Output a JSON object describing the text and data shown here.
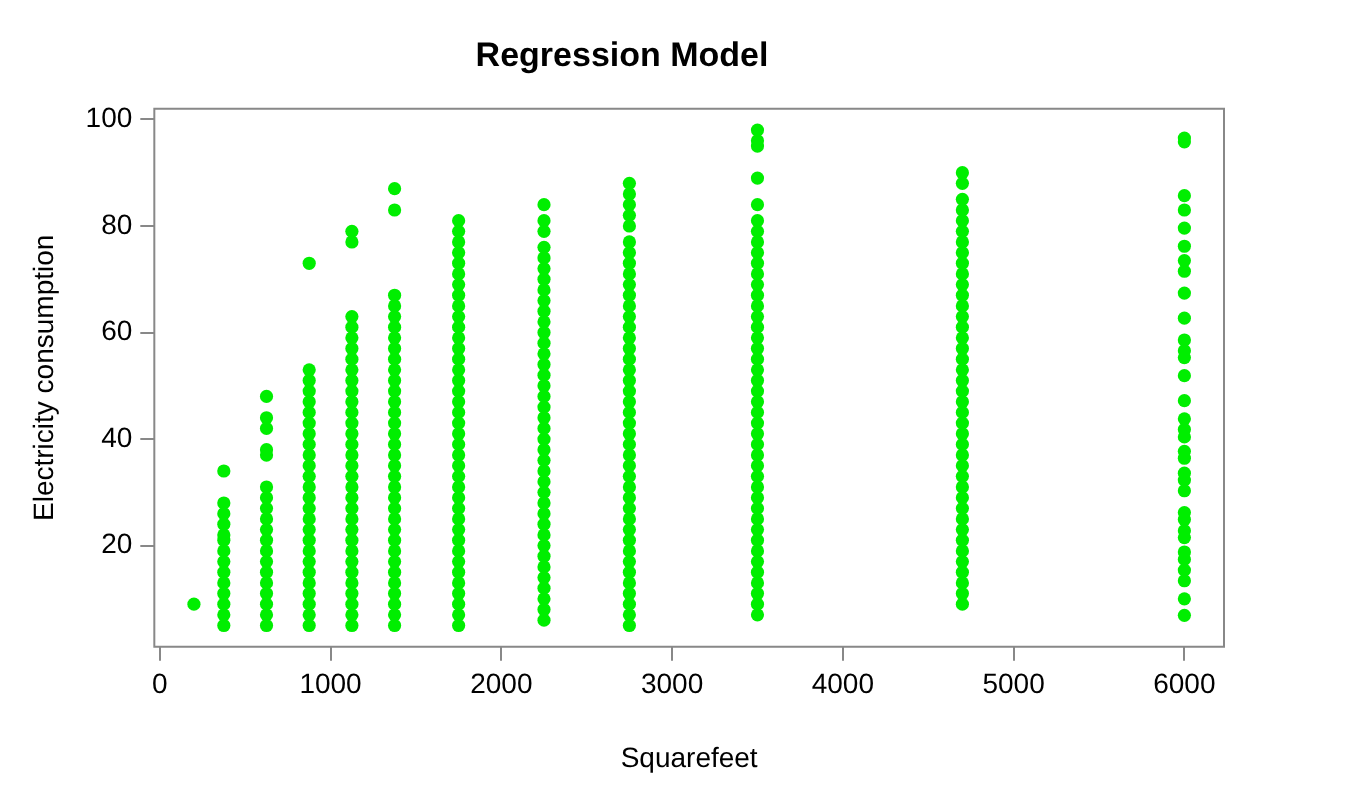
{
  "chart_data": {
    "type": "scatter",
    "title": "Regression Model",
    "xlabel": "Squarefeet",
    "ylabel": "Electricity consumption",
    "xlim": [
      -32,
      6232
    ],
    "ylim": [
      1,
      102
    ],
    "xticks": [
      0,
      1000,
      2000,
      3000,
      4000,
      5000,
      6000
    ],
    "yticks": [
      20,
      40,
      60,
      80,
      100
    ],
    "marker": "circle",
    "series": [
      {
        "color": "#00ee00",
        "x": [
          200,
          375,
          375,
          375,
          375,
          375,
          375,
          375,
          375,
          375,
          375,
          375,
          375,
          375,
          375,
          625,
          625,
          625,
          625,
          625,
          625,
          625,
          625,
          625,
          625,
          625,
          625,
          625,
          625,
          625,
          625,
          625,
          625,
          625,
          875,
          875,
          875,
          875,
          875,
          875,
          875,
          875,
          875,
          875,
          875,
          875,
          875,
          875,
          875,
          875,
          875,
          875,
          875,
          875,
          875,
          875,
          875,
          875,
          875,
          875,
          1125,
          1125,
          1125,
          1125,
          1125,
          1125,
          1125,
          1125,
          1125,
          1125,
          1125,
          1125,
          1125,
          1125,
          1125,
          1125,
          1125,
          1125,
          1125,
          1125,
          1125,
          1125,
          1125,
          1125,
          1125,
          1125,
          1125,
          1125,
          1125,
          1125,
          1125,
          1125,
          1375,
          1375,
          1375,
          1375,
          1375,
          1375,
          1375,
          1375,
          1375,
          1375,
          1375,
          1375,
          1375,
          1375,
          1375,
          1375,
          1375,
          1375,
          1375,
          1375,
          1375,
          1375,
          1375,
          1375,
          1375,
          1375,
          1375,
          1375,
          1375,
          1375,
          1375,
          1375,
          1375,
          1375,
          1750,
          1750,
          1750,
          1750,
          1750,
          1750,
          1750,
          1750,
          1750,
          1750,
          1750,
          1750,
          1750,
          1750,
          1750,
          1750,
          1750,
          1750,
          1750,
          1750,
          1750,
          1750,
          1750,
          1750,
          1750,
          1750,
          1750,
          1750,
          1750,
          1750,
          1750,
          1750,
          1750,
          1750,
          1750,
          1750,
          1750,
          1750,
          1750,
          2250,
          2250,
          2250,
          2250,
          2250,
          2250,
          2250,
          2250,
          2250,
          2250,
          2250,
          2250,
          2250,
          2250,
          2250,
          2250,
          2250,
          2250,
          2250,
          2250,
          2250,
          2250,
          2250,
          2250,
          2250,
          2250,
          2250,
          2250,
          2250,
          2250,
          2250,
          2250,
          2250,
          2250,
          2250,
          2250,
          2250,
          2250,
          2250,
          2750,
          2750,
          2750,
          2750,
          2750,
          2750,
          2750,
          2750,
          2750,
          2750,
          2750,
          2750,
          2750,
          2750,
          2750,
          2750,
          2750,
          2750,
          2750,
          2750,
          2750,
          2750,
          2750,
          2750,
          2750,
          2750,
          2750,
          2750,
          2750,
          2750,
          2750,
          2750,
          2750,
          2750,
          2750,
          2750,
          2750,
          2750,
          2750,
          2750,
          2750,
          2750,
          3500,
          3500,
          3500,
          3500,
          3500,
          3500,
          3500,
          3500,
          3500,
          3500,
          3500,
          3500,
          3500,
          3500,
          3500,
          3500,
          3500,
          3500,
          3500,
          3500,
          3500,
          3500,
          3500,
          3500,
          3500,
          3500,
          3500,
          3500,
          3500,
          3500,
          3500,
          3500,
          3500,
          3500,
          3500,
          3500,
          3500,
          3500,
          3500,
          3500,
          3500,
          3500,
          3500,
          4700,
          4700,
          4700,
          4700,
          4700,
          4700,
          4700,
          4700,
          4700,
          4700,
          4700,
          4700,
          4700,
          4700,
          4700,
          4700,
          4700,
          4700,
          4700,
          4700,
          4700,
          4700,
          4700,
          4700,
          4700,
          4700,
          4700,
          4700,
          4700,
          4700,
          4700,
          4700,
          4700,
          4700,
          4700,
          4700,
          4700,
          4700,
          4700,
          4700,
          4700,
          6000,
          6000,
          6000,
          6000,
          6000,
          6000,
          6000,
          6000,
          6000,
          6000,
          6000,
          6000,
          6000,
          6000,
          6000,
          6000,
          6000,
          6000,
          6000,
          6000,
          6000,
          6000,
          6000,
          6000,
          6000,
          6000,
          6000,
          6000,
          6000,
          6000,
          6000,
          6000,
          6000
        ],
        "values": [
          9,
          5,
          7,
          9,
          11,
          13,
          15,
          17,
          19,
          21,
          22,
          24,
          26,
          28,
          34,
          5,
          7,
          9,
          11,
          13,
          15,
          17,
          19,
          21,
          23,
          25,
          27,
          29,
          31,
          37,
          38,
          42,
          44,
          48,
          5,
          7,
          9,
          11,
          13,
          15,
          17,
          19,
          21,
          23,
          25,
          27,
          29,
          31,
          33,
          35,
          37,
          39,
          41,
          43,
          45,
          47,
          49,
          51,
          53,
          73,
          5,
          7,
          9,
          11,
          13,
          15,
          17,
          19,
          21,
          23,
          25,
          27,
          29,
          31,
          33,
          35,
          37,
          39,
          41,
          43,
          45,
          47,
          49,
          51,
          53,
          55,
          57,
          59,
          61,
          63,
          77,
          79,
          5,
          7,
          9,
          11,
          13,
          15,
          17,
          19,
          21,
          23,
          25,
          27,
          29,
          31,
          33,
          35,
          37,
          39,
          41,
          43,
          45,
          47,
          49,
          51,
          53,
          55,
          57,
          59,
          61,
          63,
          65,
          67,
          83,
          87,
          5,
          7,
          9,
          11,
          13,
          15,
          17,
          19,
          21,
          23,
          25,
          27,
          29,
          31,
          33,
          35,
          37,
          39,
          41,
          43,
          45,
          47,
          49,
          51,
          53,
          55,
          57,
          59,
          61,
          63,
          65,
          67,
          69,
          71,
          73,
          75,
          77,
          79,
          81,
          6,
          8,
          10,
          12,
          14,
          16,
          18,
          20,
          22,
          24,
          26,
          28,
          30,
          32,
          34,
          36,
          38,
          40,
          42,
          44,
          46,
          48,
          50,
          52,
          54,
          56,
          58,
          60,
          62,
          64,
          66,
          68,
          70,
          72,
          74,
          76,
          79,
          81,
          84,
          5,
          7,
          9,
          11,
          13,
          15,
          17,
          19,
          21,
          23,
          25,
          27,
          29,
          31,
          33,
          35,
          37,
          39,
          41,
          43,
          45,
          47,
          49,
          51,
          53,
          55,
          57,
          59,
          61,
          63,
          65,
          67,
          69,
          71,
          73,
          75,
          77,
          80,
          82,
          84,
          86,
          88,
          7,
          9,
          11,
          13,
          15,
          17,
          19,
          21,
          23,
          25,
          27,
          29,
          31,
          33,
          35,
          37,
          39,
          41,
          43,
          45,
          47,
          49,
          51,
          53,
          55,
          57,
          59,
          61,
          63,
          65,
          67,
          69,
          71,
          73,
          75,
          77,
          79,
          81,
          84,
          89,
          95,
          96,
          98,
          9,
          11,
          13,
          15,
          17,
          19,
          21,
          23,
          25,
          27,
          29,
          31,
          33,
          35,
          37,
          39,
          41,
          43,
          45,
          47,
          49,
          51,
          53,
          55,
          57,
          59,
          61,
          63,
          65,
          67,
          69,
          71,
          73,
          75,
          77,
          79,
          81,
          83,
          85,
          88,
          90,
          96.5,
          95.8,
          85.7,
          83,
          79.6,
          76.2,
          73.5,
          71.5,
          67.4,
          62.7,
          58.6,
          56.6,
          55.3,
          51.9,
          47.2,
          43.8,
          41.8,
          40.4,
          37.7,
          36.4,
          33.6,
          32.3,
          30.3,
          26.2,
          24.9,
          22.8,
          21.5,
          18.8,
          17.4,
          15.4,
          13.4,
          10,
          6.9
        ]
      }
    ]
  }
}
